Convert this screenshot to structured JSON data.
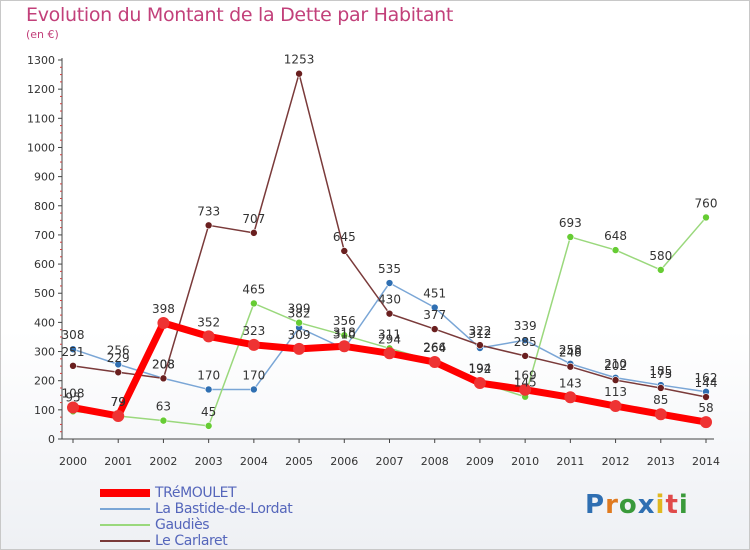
{
  "title": "Evolution du Montant de la Dette par Habitant",
  "subtitle": "(en €)",
  "brand": "Proxiti",
  "chart_data": {
    "type": "line",
    "x": [
      "2000",
      "2001",
      "2002",
      "2003",
      "2004",
      "2005",
      "2006",
      "2007",
      "2008",
      "2009",
      "2010",
      "2011",
      "2012",
      "2013",
      "2014"
    ],
    "ylim": [
      0,
      1300
    ],
    "yticks": [
      0,
      100,
      200,
      300,
      400,
      500,
      600,
      700,
      800,
      900,
      1000,
      1100,
      1200,
      1300
    ],
    "grid": false,
    "legend_position": "bottom-left",
    "series": [
      {
        "name": "TRéMOULET",
        "color": "#ff0000",
        "marker": "#ee3333",
        "width": 7,
        "values": [
          108,
          79,
          398,
          352,
          323,
          309,
          318,
          294,
          264,
          192,
          169,
          143,
          113,
          85,
          58
        ]
      },
      {
        "name": "La Bastide-de-Lordat",
        "color": "#7aa6d6",
        "marker": "#2f6fb2",
        "width": 1.5,
        "values": [
          308,
          256,
          208,
          170,
          170,
          382,
          310,
          535,
          451,
          312,
          339,
          258,
          210,
          185,
          162
        ]
      },
      {
        "name": "Gaudiès",
        "color": "#9ad87c",
        "marker": "#66cc33",
        "width": 1.5,
        "values": [
          95,
          79,
          63,
          45,
          465,
          399,
          356,
          311,
          266,
          194,
          145,
          693,
          648,
          580,
          760
        ]
      },
      {
        "name": "Le Carlaret",
        "color": "#7a3a3a",
        "marker": "#6a1f1f",
        "width": 1.5,
        "values": [
          251,
          229,
          208,
          733,
          707,
          1253,
          645,
          430,
          377,
          322,
          285,
          248,
          202,
          175,
          144
        ]
      }
    ]
  }
}
